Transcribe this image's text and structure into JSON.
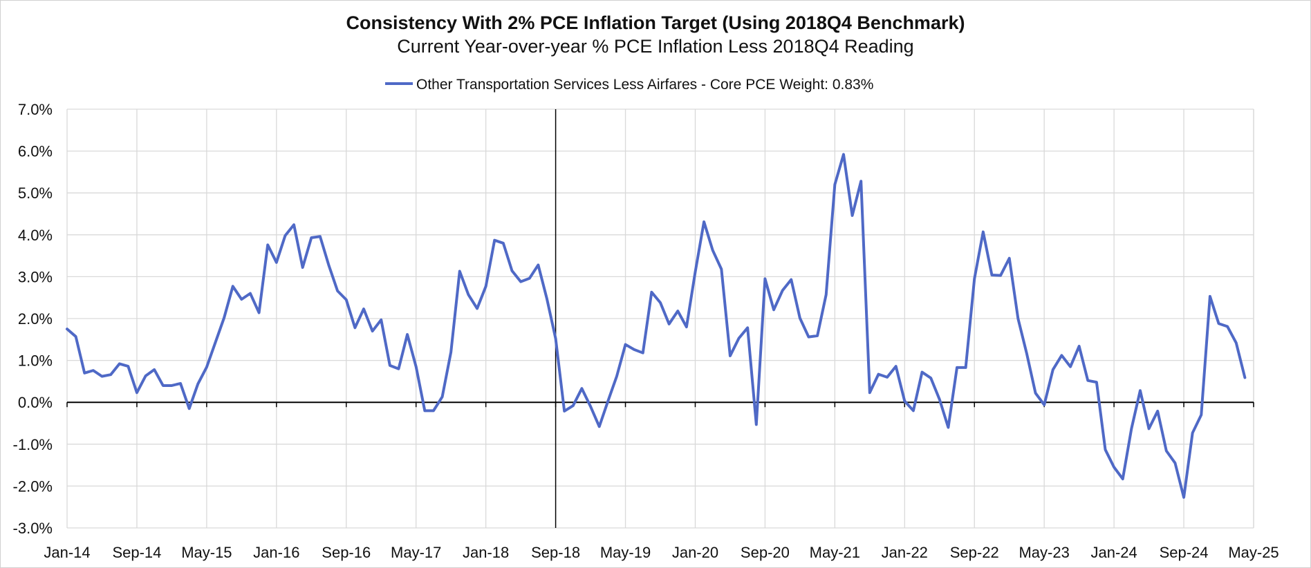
{
  "chart_data": {
    "type": "line",
    "title": "Consistency With 2% PCE Inflation Target (Using 2018Q4 Benchmark)",
    "subtitle": "Current Year-over-year % PCE Inflation Less 2018Q4 Reading",
    "ylim": [
      -3.0,
      7.0
    ],
    "ytick_values": [
      -3,
      -2,
      -1,
      0,
      1,
      2,
      3,
      4,
      5,
      6,
      7
    ],
    "ytick_labels": [
      "-3.0%",
      "-2.0%",
      "-1.0%",
      "0.0%",
      "1.0%",
      "2.0%",
      "3.0%",
      "4.0%",
      "5.0%",
      "6.0%",
      "7.0%"
    ],
    "xtick_labels": [
      "Jan-14",
      "Sep-14",
      "May-15",
      "Jan-16",
      "Sep-16",
      "May-17",
      "Jan-18",
      "Sep-18",
      "May-19",
      "Jan-20",
      "Sep-20",
      "May-21",
      "Jan-22",
      "Sep-22",
      "May-23",
      "Jan-24",
      "Sep-24",
      "May-25"
    ],
    "x_start": "Jan-14",
    "x_end": "May-25",
    "vertical_marker": "Sep-18",
    "grid": true,
    "legend_position": "top-center",
    "series": [
      {
        "name": "Other Transportation Services Less Airfares - Core PCE Weight: 0.83%",
        "color": "#4F69C6",
        "start": "Jan-14",
        "values": [
          1.75,
          1.57,
          0.7,
          0.76,
          0.62,
          0.66,
          0.92,
          0.86,
          0.23,
          0.63,
          0.78,
          0.4,
          0.4,
          0.45,
          -0.15,
          0.44,
          0.84,
          1.43,
          2.02,
          2.77,
          2.46,
          2.6,
          2.14,
          3.76,
          3.34,
          3.98,
          4.24,
          3.22,
          3.93,
          3.96,
          3.27,
          2.66,
          2.45,
          1.78,
          2.23,
          1.7,
          1.97,
          0.88,
          0.8,
          1.62,
          0.85,
          -0.2,
          -0.2,
          0.13,
          1.2,
          3.13,
          2.57,
          2.24,
          2.77,
          3.87,
          3.8,
          3.14,
          2.88,
          2.96,
          3.28,
          2.47,
          1.52,
          -0.21,
          -0.08,
          0.33,
          -0.1,
          -0.58,
          0.03,
          0.62,
          1.38,
          1.26,
          1.18,
          2.63,
          2.38,
          1.87,
          2.18,
          1.8,
          3.11,
          4.31,
          3.63,
          3.18,
          1.11,
          1.53,
          1.78,
          -0.53,
          2.95,
          2.21,
          2.67,
          2.93,
          2.01,
          1.56,
          1.59,
          2.57,
          5.2,
          5.92,
          4.46,
          5.28,
          0.23,
          0.67,
          0.6,
          0.86,
          0.03,
          -0.2,
          0.72,
          0.58,
          0.07,
          -0.6,
          0.83,
          0.83,
          2.95,
          4.07,
          3.04,
          3.03,
          3.44,
          2.0,
          1.16,
          0.22,
          -0.06,
          0.78,
          1.12,
          0.85,
          1.34,
          0.52,
          0.48,
          -1.13,
          -1.55,
          -1.83,
          -0.63,
          0.28,
          -0.63,
          -0.21,
          -1.16,
          -1.45,
          -2.27,
          -0.73,
          -0.3,
          2.53,
          1.88,
          1.81,
          1.42,
          0.59
        ]
      }
    ]
  }
}
